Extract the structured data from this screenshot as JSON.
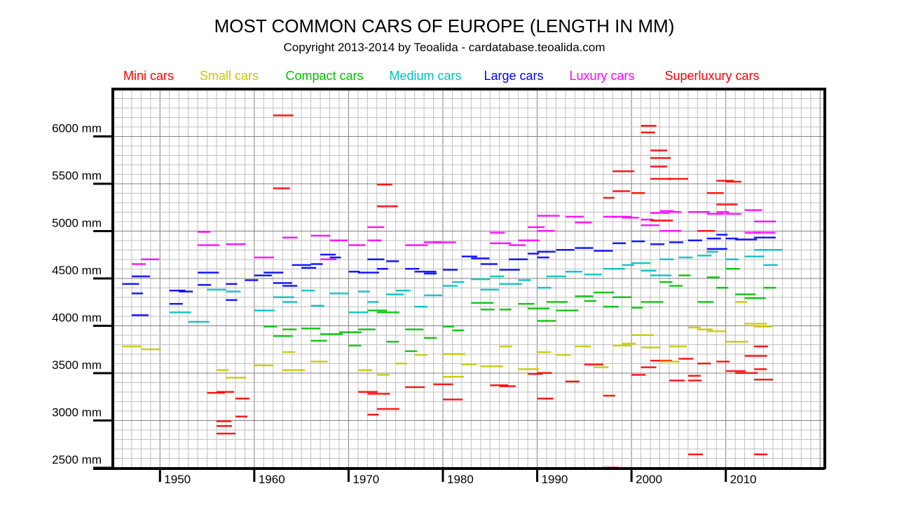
{
  "chart_data": {
    "type": "scatter",
    "title": "MOST COMMON CARS OF EUROPE (LENGTH IN MM)",
    "subtitle": "Copyright 2013-2014 by Teoalida - cardatabase.teoalida.com",
    "xlim": [
      1945,
      2020.5
    ],
    "ylim": [
      2500,
      6500
    ],
    "x_ticks": [
      1950,
      1960,
      1970,
      1980,
      1990,
      2000,
      2010
    ],
    "x_tick_labels": [
      "1950",
      "1960",
      "1970",
      "1980",
      "1990",
      "2000",
      "2010"
    ],
    "y_ticks": [
      6000,
      5500,
      5000,
      4500,
      4000,
      3500,
      3000,
      2500
    ],
    "y_tick_labels": [
      "6000 mm",
      "5500 mm",
      "5000 mm",
      "4500 mm",
      "4000 mm",
      "3500 mm",
      "3000 mm",
      "2500 mm"
    ],
    "grid": {
      "minor_x_years": 1,
      "major_x_years": 10,
      "minor_y_mm": 100,
      "major_y_mm": 500
    },
    "legend_placement": "top",
    "series": [
      {
        "name": "Mini cars",
        "color": "#ff0000",
        "points": [
          [
            1955,
            3290
          ],
          [
            1956,
            3300
          ],
          [
            1956,
            2990
          ],
          [
            1956,
            2940
          ],
          [
            1956,
            2860
          ],
          [
            1958,
            3040
          ],
          [
            1958,
            3230
          ],
          [
            1971,
            3300
          ],
          [
            1972,
            3280
          ],
          [
            1972,
            3060
          ],
          [
            1973,
            3120
          ],
          [
            1976,
            3350
          ],
          [
            1979,
            3380
          ],
          [
            1980,
            3220
          ],
          [
            1985,
            3370
          ],
          [
            1986,
            3360
          ],
          [
            1989,
            3490
          ],
          [
            1990,
            3500
          ],
          [
            1990,
            3230
          ],
          [
            1993,
            3410
          ],
          [
            1995,
            3590
          ],
          [
            1997,
            3260
          ],
          [
            2000,
            3480
          ],
          [
            2002,
            3630
          ],
          [
            2004,
            3420
          ],
          [
            2005,
            3650
          ],
          [
            2006,
            3470
          ],
          [
            2007,
            3600
          ],
          [
            2009,
            3620
          ],
          [
            2010,
            3520
          ],
          [
            2011,
            3500
          ],
          [
            2013,
            3430
          ],
          [
            2013,
            3540
          ],
          [
            2013,
            3780
          ],
          [
            2012,
            3680
          ],
          [
            2006,
            3420
          ],
          [
            2001,
            3560
          ]
        ]
      },
      {
        "name": "Small cars",
        "color": "#c8c800",
        "points": [
          [
            1946,
            3780
          ],
          [
            1948,
            3750
          ],
          [
            1956,
            3530
          ],
          [
            1957,
            3450
          ],
          [
            1960,
            3580
          ],
          [
            1963,
            3720
          ],
          [
            1963,
            3530
          ],
          [
            1966,
            3620
          ],
          [
            1971,
            3530
          ],
          [
            1973,
            3480
          ],
          [
            1975,
            3600
          ],
          [
            1977,
            3690
          ],
          [
            1980,
            3700
          ],
          [
            1980,
            3460
          ],
          [
            1982,
            3590
          ],
          [
            1984,
            3570
          ],
          [
            1986,
            3780
          ],
          [
            1988,
            3540
          ],
          [
            1990,
            3720
          ],
          [
            1992,
            3690
          ],
          [
            1994,
            3780
          ],
          [
            1996,
            3560
          ],
          [
            1998,
            3790
          ],
          [
            1999,
            3810
          ],
          [
            2000,
            3900
          ],
          [
            2001,
            3770
          ],
          [
            2003,
            3620
          ],
          [
            2004,
            3780
          ],
          [
            2006,
            3980
          ],
          [
            2007,
            3960
          ],
          [
            2008,
            3940
          ],
          [
            2010,
            3830
          ],
          [
            2012,
            4020
          ],
          [
            2013,
            3990
          ],
          [
            2011,
            4250
          ]
        ]
      },
      {
        "name": "Compact cars",
        "color": "#00c000",
        "points": [
          [
            1961,
            3990
          ],
          [
            1962,
            3890
          ],
          [
            1963,
            3960
          ],
          [
            1965,
            3970
          ],
          [
            1966,
            3840
          ],
          [
            1967,
            3910
          ],
          [
            1969,
            3930
          ],
          [
            1971,
            3960
          ],
          [
            1972,
            4160
          ],
          [
            1973,
            4140
          ],
          [
            1974,
            3830
          ],
          [
            1976,
            3960
          ],
          [
            1978,
            3870
          ],
          [
            1980,
            3990
          ],
          [
            1981,
            3950
          ],
          [
            1983,
            4240
          ],
          [
            1984,
            4170
          ],
          [
            1986,
            4170
          ],
          [
            1988,
            4230
          ],
          [
            1989,
            4180
          ],
          [
            1990,
            4050
          ],
          [
            1991,
            4250
          ],
          [
            1992,
            4160
          ],
          [
            1994,
            4310
          ],
          [
            1995,
            4260
          ],
          [
            1996,
            4350
          ],
          [
            1997,
            4200
          ],
          [
            1998,
            4300
          ],
          [
            2000,
            4190
          ],
          [
            2001,
            4250
          ],
          [
            2003,
            4460
          ],
          [
            2004,
            4420
          ],
          [
            2005,
            4530
          ],
          [
            2007,
            4250
          ],
          [
            2008,
            4510
          ],
          [
            2009,
            4400
          ],
          [
            2010,
            4600
          ],
          [
            2011,
            4330
          ],
          [
            2012,
            4290
          ],
          [
            2014,
            4400
          ],
          [
            1970,
            3790
          ],
          [
            1976,
            3730
          ]
        ]
      },
      {
        "name": "Medium cars",
        "color": "#00c0c0",
        "points": [
          [
            1951,
            4140
          ],
          [
            1953,
            4040
          ],
          [
            1955,
            4380
          ],
          [
            1957,
            4360
          ],
          [
            1960,
            4160
          ],
          [
            1962,
            4300
          ],
          [
            1963,
            4250
          ],
          [
            1965,
            4370
          ],
          [
            1966,
            4210
          ],
          [
            1968,
            4340
          ],
          [
            1970,
            4140
          ],
          [
            1971,
            4360
          ],
          [
            1972,
            4250
          ],
          [
            1974,
            4330
          ],
          [
            1975,
            4370
          ],
          [
            1977,
            4200
          ],
          [
            1978,
            4320
          ],
          [
            1980,
            4420
          ],
          [
            1981,
            4460
          ],
          [
            1983,
            4490
          ],
          [
            1984,
            4380
          ],
          [
            1985,
            4520
          ],
          [
            1986,
            4440
          ],
          [
            1988,
            4480
          ],
          [
            1990,
            4400
          ],
          [
            1991,
            4520
          ],
          [
            1993,
            4570
          ],
          [
            1995,
            4540
          ],
          [
            1997,
            4600
          ],
          [
            1999,
            4640
          ],
          [
            2000,
            4660
          ],
          [
            2001,
            4580
          ],
          [
            2003,
            4700
          ],
          [
            2005,
            4720
          ],
          [
            2007,
            4740
          ],
          [
            2008,
            4780
          ],
          [
            2010,
            4700
          ],
          [
            2012,
            4730
          ],
          [
            2013,
            4800
          ],
          [
            2014,
            4800
          ],
          [
            2014,
            4640
          ],
          [
            2002,
            4530
          ]
        ]
      },
      {
        "name": "Large cars",
        "color": "#0000ff",
        "points": [
          [
            1946,
            4440
          ],
          [
            1947,
            4520
          ],
          [
            1947,
            4340
          ],
          [
            1947,
            4110
          ],
          [
            1951,
            4230
          ],
          [
            1951,
            4370
          ],
          [
            1952,
            4360
          ],
          [
            1954,
            4560
          ],
          [
            1954,
            4430
          ],
          [
            1957,
            4440
          ],
          [
            1957,
            4270
          ],
          [
            1959,
            4480
          ],
          [
            1960,
            4530
          ],
          [
            1961,
            4560
          ],
          [
            1962,
            4450
          ],
          [
            1963,
            4420
          ],
          [
            1964,
            4640
          ],
          [
            1965,
            4610
          ],
          [
            1966,
            4650
          ],
          [
            1967,
            4750
          ],
          [
            1968,
            4720
          ],
          [
            1970,
            4570
          ],
          [
            1971,
            4560
          ],
          [
            1972,
            4700
          ],
          [
            1973,
            4600
          ],
          [
            1974,
            4680
          ],
          [
            1976,
            4600
          ],
          [
            1977,
            4570
          ],
          [
            1978,
            4550
          ],
          [
            1980,
            4590
          ],
          [
            1982,
            4730
          ],
          [
            1983,
            4710
          ],
          [
            1984,
            4650
          ],
          [
            1986,
            4590
          ],
          [
            1987,
            4700
          ],
          [
            1989,
            4760
          ],
          [
            1990,
            4780
          ],
          [
            1990,
            4720
          ],
          [
            1992,
            4800
          ],
          [
            1994,
            4820
          ],
          [
            1996,
            4790
          ],
          [
            1998,
            4870
          ],
          [
            2000,
            4890
          ],
          [
            2002,
            4860
          ],
          [
            2004,
            4880
          ],
          [
            2006,
            4900
          ],
          [
            2008,
            4920
          ],
          [
            2009,
            4960
          ],
          [
            2010,
            4920
          ],
          [
            2011,
            4910
          ],
          [
            2013,
            4930
          ],
          [
            2008,
            4810
          ]
        ]
      },
      {
        "name": "Luxury cars",
        "color": "#ff00ff",
        "points": [
          [
            1947,
            4650
          ],
          [
            1948,
            4700
          ],
          [
            1954,
            4990
          ],
          [
            1954,
            4850
          ],
          [
            1957,
            4860
          ],
          [
            1960,
            4720
          ],
          [
            1963,
            4930
          ],
          [
            1966,
            4950
          ],
          [
            1967,
            4700
          ],
          [
            1968,
            4900
          ],
          [
            1970,
            4850
          ],
          [
            1972,
            5040
          ],
          [
            1972,
            4900
          ],
          [
            1976,
            4850
          ],
          [
            1978,
            4880
          ],
          [
            1979,
            4880
          ],
          [
            1985,
            4980
          ],
          [
            1985,
            4870
          ],
          [
            1987,
            4850
          ],
          [
            1988,
            4900
          ],
          [
            1989,
            5040
          ],
          [
            1990,
            5160
          ],
          [
            1990,
            5000
          ],
          [
            1993,
            5150
          ],
          [
            1994,
            5090
          ],
          [
            1997,
            5150
          ],
          [
            1998,
            5150
          ],
          [
            1999,
            5140
          ],
          [
            2001,
            5120
          ],
          [
            2002,
            5190
          ],
          [
            2003,
            5210
          ],
          [
            2004,
            5200
          ],
          [
            2006,
            5200
          ],
          [
            2008,
            5180
          ],
          [
            2009,
            5200
          ],
          [
            2010,
            5180
          ],
          [
            2012,
            5220
          ],
          [
            2013,
            5100
          ],
          [
            2013,
            4980
          ],
          [
            2012,
            4980
          ],
          [
            2001,
            5060
          ],
          [
            2003,
            5000
          ]
        ]
      },
      {
        "name": "Superluxury cars",
        "color": "#ff0000",
        "points": [
          [
            1962,
            6220
          ],
          [
            1962,
            5450
          ],
          [
            1973,
            5490
          ],
          [
            1973,
            5260
          ],
          [
            1998,
            5630
          ],
          [
            1998,
            5420
          ],
          [
            2001,
            6110
          ],
          [
            2001,
            6040
          ],
          [
            2002,
            5850
          ],
          [
            2002,
            5770
          ],
          [
            2002,
            5680
          ],
          [
            2002,
            5550
          ],
          [
            2004,
            5550
          ],
          [
            2000,
            5400
          ],
          [
            1997,
            5350
          ],
          [
            2009,
            5530
          ],
          [
            2008,
            5400
          ],
          [
            2010,
            5520
          ],
          [
            2009,
            5280
          ],
          [
            2006,
            2640
          ],
          [
            2013,
            2640
          ],
          [
            1997,
            2500
          ],
          [
            2002,
            5110
          ],
          [
            2007,
            5000
          ]
        ]
      }
    ]
  }
}
